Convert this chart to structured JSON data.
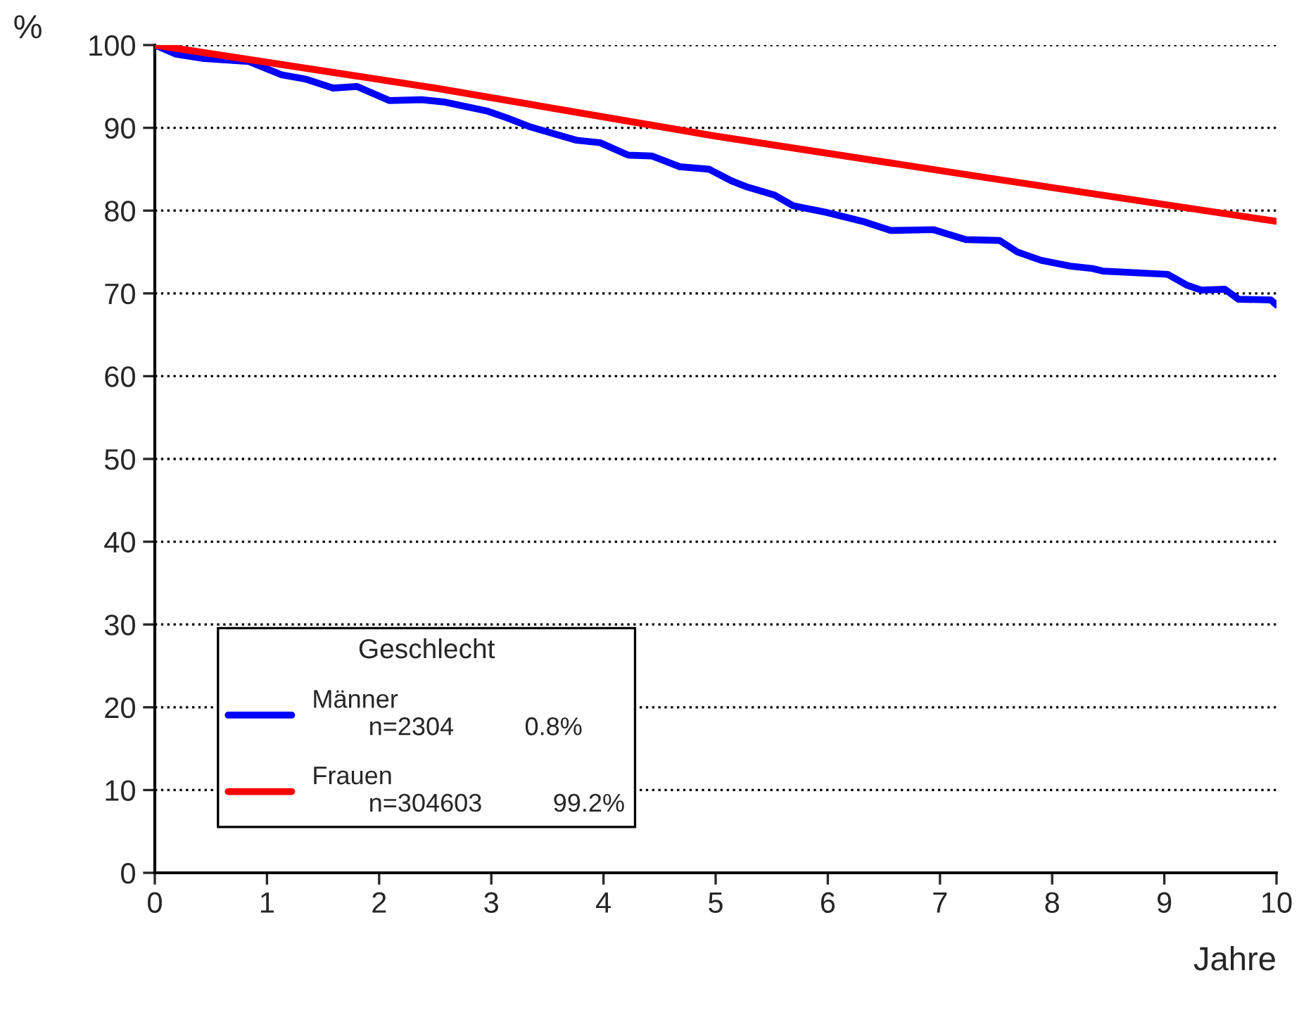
{
  "chart_data": {
    "type": "line",
    "xlabel": "Jahre",
    "ylabel": "%",
    "legend_title": "Geschlecht",
    "xlim": [
      0,
      10
    ],
    "xticks": [
      0,
      1,
      2,
      3,
      4,
      5,
      6,
      7,
      8,
      9,
      10
    ],
    "ylim": [
      0,
      100
    ],
    "yticks": [
      0,
      10,
      20,
      30,
      40,
      50,
      60,
      70,
      80,
      90,
      100
    ],
    "grid": "y",
    "legend": "bottom left",
    "line_style": "solid",
    "marker": "none",
    "annotations": [
      "n=2304",
      "0.8%",
      "n=304603",
      "99.2%"
    ],
    "series": [
      {
        "name": "Männer",
        "color": "#0000ff",
        "x": [
          0,
          0.19,
          0.42,
          0.84,
          1.13,
          1.34,
          1.59,
          1.8,
          2.09,
          2.38,
          2.59,
          2.97,
          3.14,
          3.35,
          3.76,
          3.97,
          4.22,
          4.43,
          4.68,
          4.94,
          5.14,
          5.27,
          5.52,
          5.69,
          5.98,
          6.31,
          6.56,
          6.94,
          7.23,
          7.53,
          7.69,
          7.9,
          8.16,
          8.36,
          8.45,
          9.03,
          9.2,
          9.33,
          9.54,
          9.66,
          9.95,
          10.0
        ],
        "values": [
          100,
          98.9,
          98.4,
          98.0,
          96.4,
          95.9,
          94.8,
          95.0,
          93.3,
          93.4,
          93.1,
          92.0,
          91.2,
          90.1,
          88.5,
          88.2,
          86.7,
          86.6,
          85.3,
          85.0,
          83.6,
          82.9,
          81.9,
          80.6,
          79.8,
          78.7,
          77.6,
          77.7,
          76.5,
          76.4,
          75.0,
          74.0,
          73.3,
          73.0,
          72.7,
          72.3,
          71.0,
          70.4,
          70.5,
          69.3,
          69.2,
          68.6
        ]
      },
      {
        "name": "Frauen",
        "color": "#ff0000",
        "x": [
          0,
          2.5,
          5,
          7.5,
          10
        ],
        "values": [
          100,
          94.8,
          89.0,
          83.8,
          78.7
        ]
      }
    ]
  }
}
